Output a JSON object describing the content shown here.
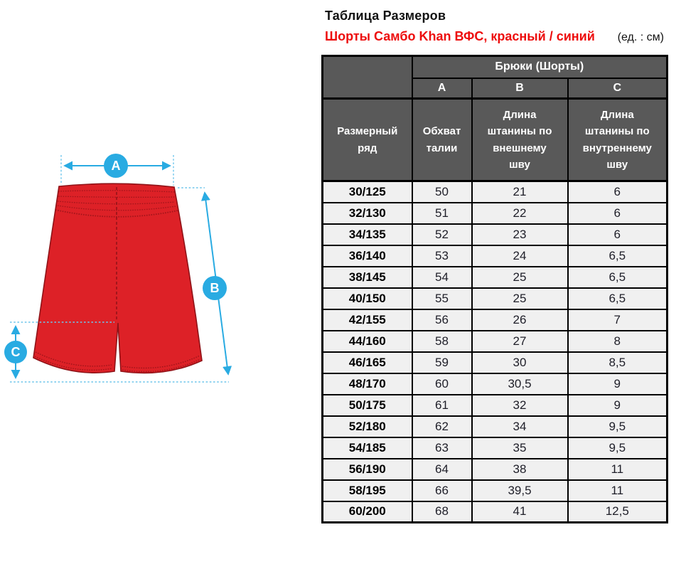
{
  "title": "Таблица Размеров",
  "subtitle": "Шорты Самбо Khan ВФС, красный / синий",
  "units": "(ед. : см)",
  "diagram": {
    "labels": {
      "a": "A",
      "b": "B",
      "c": "C"
    },
    "colors": {
      "shorts_red": "#dd2127",
      "shorts_outline": "#8f1318",
      "stitch_red": "#9c141a",
      "dimension_blue": "#29abe2",
      "extension_blue": "#6ec6ec"
    }
  },
  "table": {
    "group_header": "Брюки (Шорты)",
    "letter_headers": [
      "A",
      "B",
      "C"
    ],
    "row_header_label": "Размерный ряд",
    "col_headers": [
      "Обхват талии",
      "Длина штанины по внешнему шву",
      "Длина штанины по внутреннему шву"
    ],
    "colors": {
      "header_bg": "#595959",
      "header_text": "#ffffff",
      "row_bg": "#f0f0f0",
      "border": "#000000",
      "subtitle_red": "#ed0c0c"
    },
    "rows": [
      {
        "size": "30/125",
        "values": [
          "50",
          "21",
          "6"
        ]
      },
      {
        "size": "32/130",
        "values": [
          "51",
          "22",
          "6"
        ]
      },
      {
        "size": "34/135",
        "values": [
          "52",
          "23",
          "6"
        ]
      },
      {
        "size": "36/140",
        "values": [
          "53",
          "24",
          "6,5"
        ]
      },
      {
        "size": "38/145",
        "values": [
          "54",
          "25",
          "6,5"
        ]
      },
      {
        "size": "40/150",
        "values": [
          "55",
          "25",
          "6,5"
        ]
      },
      {
        "size": "42/155",
        "values": [
          "56",
          "26",
          "7"
        ]
      },
      {
        "size": "44/160",
        "values": [
          "58",
          "27",
          "8"
        ]
      },
      {
        "size": "46/165",
        "values": [
          "59",
          "30",
          "8,5"
        ]
      },
      {
        "size": "48/170",
        "values": [
          "60",
          "30,5",
          "9"
        ]
      },
      {
        "size": "50/175",
        "values": [
          "61",
          "32",
          "9"
        ]
      },
      {
        "size": "52/180",
        "values": [
          "62",
          "34",
          "9,5"
        ]
      },
      {
        "size": "54/185",
        "values": [
          "63",
          "35",
          "9,5"
        ]
      },
      {
        "size": "56/190",
        "values": [
          "64",
          "38",
          "11"
        ]
      },
      {
        "size": "58/195",
        "values": [
          "66",
          "39,5",
          "11"
        ]
      },
      {
        "size": "60/200",
        "values": [
          "68",
          "41",
          "12,5"
        ]
      }
    ]
  }
}
